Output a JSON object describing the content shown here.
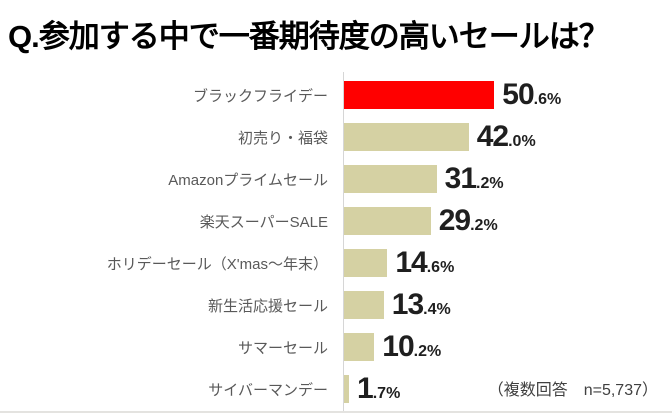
{
  "title": "Q.参加する中で一番期待度の高いセールは？",
  "note": "（複数回答　n=5,737）",
  "chart_data": {
    "type": "bar",
    "orientation": "horizontal",
    "title": "Q.参加する中で一番期待度の高いセールは？",
    "categories": [
      "ブラックフライデー",
      "初売り・福袋",
      "Amazonプライムセール",
      "楽天スーパーSALE",
      "ホリデーセール（X'mas～年末）",
      "新生活応援セール",
      "サマーセール",
      "サイバーマンデー"
    ],
    "values": [
      50.6,
      42.0,
      31.2,
      29.2,
      14.6,
      13.4,
      10.2,
      1.7
    ],
    "value_suffix": "%",
    "xlim": [
      0,
      55
    ],
    "grid": false,
    "legend": false,
    "data_labels": true,
    "highlight_index": 0,
    "colors": {
      "highlight": "#ff0000",
      "default": "#d5d1a3",
      "axis_line": "#d6d6d6",
      "category_label": "#595959",
      "value_label": "#1f1f1f",
      "title": "#000000"
    },
    "annotation": "（複数回答　n=5,737）"
  }
}
